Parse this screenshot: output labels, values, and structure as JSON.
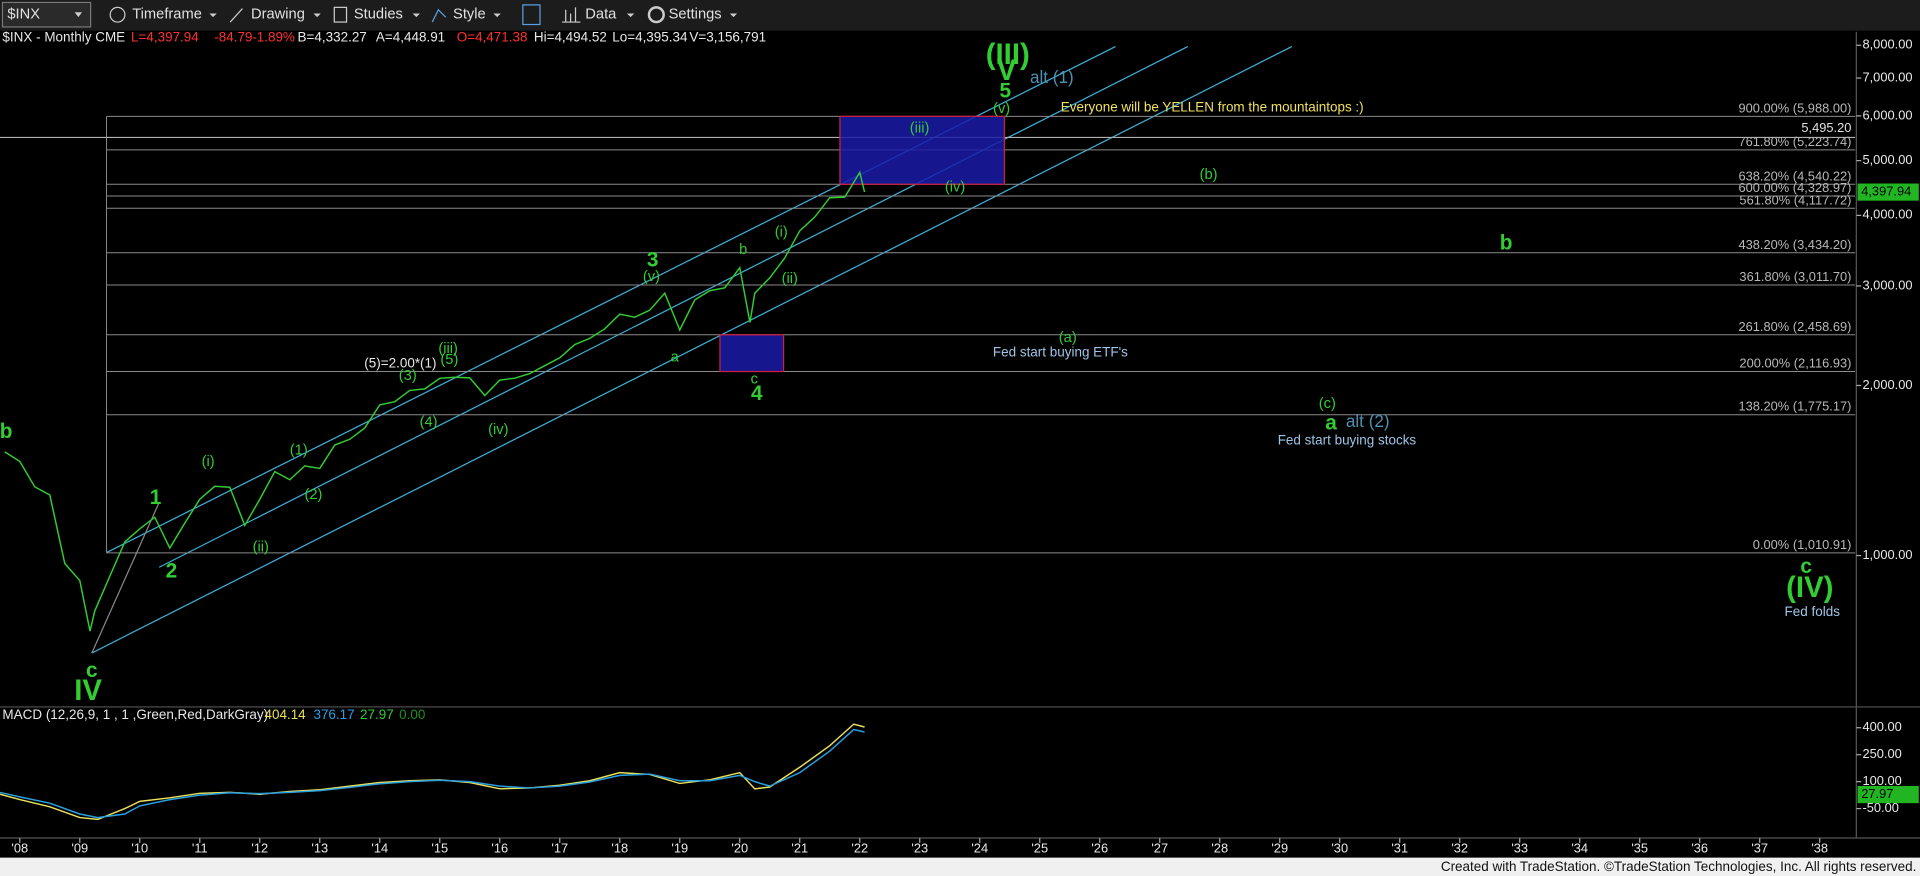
{
  "toolbar": {
    "symbol": "$INX",
    "items": [
      "Timeframe",
      "Drawing",
      "Studies",
      "Style",
      "Data",
      "Settings"
    ]
  },
  "info": [
    "$INX - Monthly CME",
    "L=4,397.94",
    "-84.79",
    "-1.89%",
    "B=4,332.27",
    "A=4,448.91",
    "O=4,471.38",
    "Hi=4,494.52",
    "Lo=4,395.34",
    "V=3,156,791"
  ],
  "footer": "Created with TradeStation. ©TradeStation Technologies, Inc. All rights reserved.",
  "chart_data": [
    {
      "type": "line",
      "log_scale": true,
      "grid": false,
      "xlim": [
        2007.67,
        2038.59
      ],
      "ylim": [
        545,
        8450
      ],
      "xticks": [
        {
          "value": 2008,
          "label": "'08"
        },
        {
          "value": 2009,
          "label": "'09"
        },
        {
          "value": 2010,
          "label": "'10"
        },
        {
          "value": 2011,
          "label": "'11"
        },
        {
          "value": 2012,
          "label": "'12"
        },
        {
          "value": 2013,
          "label": "'13"
        },
        {
          "value": 2014,
          "label": "'14"
        },
        {
          "value": 2015,
          "label": "'15"
        },
        {
          "value": 2016,
          "label": "'16"
        },
        {
          "value": 2017,
          "label": "'17"
        },
        {
          "value": 2018,
          "label": "'18"
        },
        {
          "value": 2019,
          "label": "'19"
        },
        {
          "value": 2020,
          "label": "'20"
        },
        {
          "value": 2021,
          "label": "'21"
        },
        {
          "value": 2022,
          "label": "'22"
        },
        {
          "value": 2023,
          "label": "'23"
        },
        {
          "value": 2024,
          "label": "'24"
        },
        {
          "value": 2025,
          "label": "'25"
        },
        {
          "value": 2026,
          "label": "'26"
        },
        {
          "value": 2027,
          "label": "'27"
        },
        {
          "value": 2028,
          "label": "'28"
        },
        {
          "value": 2029,
          "label": "'29"
        },
        {
          "value": 2030,
          "label": "'30"
        },
        {
          "value": 2031,
          "label": "'31"
        },
        {
          "value": 2032,
          "label": "'32"
        },
        {
          "value": 2033,
          "label": "'33"
        },
        {
          "value": 2034,
          "label": "'34"
        },
        {
          "value": 2035,
          "label": "'35"
        },
        {
          "value": 2036,
          "label": "'36"
        },
        {
          "value": 2037,
          "label": "'37"
        },
        {
          "value": 2038,
          "label": "'38"
        }
      ],
      "yticks": [
        {
          "value": 1000,
          "label": "1,000.00"
        },
        {
          "value": 2000,
          "label": "2,000.00"
        },
        {
          "value": 3000,
          "label": "3,000.00"
        },
        {
          "value": 4000,
          "label": "4,000.00"
        },
        {
          "value": 5000,
          "label": "5,000.00"
        },
        {
          "value": 6000,
          "label": "6,000.00"
        },
        {
          "value": 7000,
          "label": "7,000.00"
        },
        {
          "value": 8000,
          "label": "8,000.00"
        }
      ],
      "x": [
        2007.75,
        2008.0,
        2008.25,
        2008.5,
        2008.75,
        2009.0,
        2009.17,
        2009.25,
        2009.5,
        2009.75,
        2010.0,
        2010.25,
        2010.5,
        2010.75,
        2011.0,
        2011.25,
        2011.5,
        2011.75,
        2012.0,
        2012.25,
        2012.5,
        2012.75,
        2013.0,
        2013.25,
        2013.5,
        2013.75,
        2014.0,
        2014.25,
        2014.5,
        2014.75,
        2015.0,
        2015.25,
        2015.5,
        2015.75,
        2016.0,
        2016.25,
        2016.5,
        2016.75,
        2017.0,
        2017.25,
        2017.5,
        2017.75,
        2018.0,
        2018.25,
        2018.5,
        2018.75,
        2019.0,
        2019.25,
        2019.5,
        2019.75,
        2020.0,
        2020.17,
        2020.25,
        2020.5,
        2020.75,
        2021.0,
        2021.25,
        2021.5,
        2021.75,
        2022.0,
        2022.08
      ],
      "series": [
        {
          "color": "#33cc33",
          "values": [
            1526,
            1468,
            1323,
            1280,
            968,
            903,
            735,
            798,
            919,
            1057,
            1115,
            1169,
            1031,
            1141,
            1258,
            1326,
            1321,
            1131,
            1258,
            1408,
            1362,
            1441,
            1426,
            1569,
            1606,
            1682,
            1848,
            1872,
            1960,
            1972,
            2059,
            2068,
            2063,
            1920,
            2044,
            2060,
            2099,
            2168,
            2239,
            2363,
            2423,
            2519,
            2674,
            2641,
            2718,
            2914,
            2507,
            2834,
            2942,
            2977,
            3231,
            2585,
            2912,
            3100,
            3363,
            3756,
            3973,
            4298,
            4308,
            4766,
            4397.94
          ]
        }
      ],
      "last_price": 4397.94,
      "last_price_label": "4,397.94",
      "reference_line": {
        "value": 5495.2,
        "label": "5,495.20"
      },
      "levels": [
        {
          "value": 5988,
          "label": "900.00% (5,988.00)"
        },
        {
          "value": 5223.74,
          "label": "761.80% (5,223.74)"
        },
        {
          "value": 4540.22,
          "label": "638.20% (4,540.22)"
        },
        {
          "value": 4328.97,
          "label": "600.00% (4,328.97)"
        },
        {
          "value": 4117.72,
          "label": "561.80% (4,117.72)"
        },
        {
          "value": 3434.2,
          "label": "438.20% (3,434.20)"
        },
        {
          "value": 3011.7,
          "label": "361.80% (3,011.70)"
        },
        {
          "value": 2458.69,
          "label": "261.80% (2,458.69)"
        },
        {
          "value": 2116.93,
          "label": "200.00% (2,116.93)"
        },
        {
          "value": 1775.17,
          "label": "138.20% (1,775.17)"
        },
        {
          "value": 1010.91,
          "label": "0.00% (1,010.91)"
        }
      ],
      "boxes": [
        {
          "x": [
            2021.67,
            2024.41
          ],
          "y": [
            4540.22,
            5988
          ]
        },
        {
          "x": [
            2019.67,
            2020.73
          ],
          "y": [
            2116.93,
            2458.69
          ]
        }
      ],
      "annotations": [
        "b",
        "c",
        "IV",
        "1",
        "2",
        "(i)",
        "(ii)",
        "(1)",
        "(2)",
        "(3)",
        "(4)",
        "(5)",
        "(5)=2.00*(1)",
        "(iii)",
        "(iv)",
        "3",
        "(v)",
        "a",
        "b",
        "c",
        "4",
        "(i)",
        "(ii)",
        "(iii)",
        "(iv)",
        "(III)",
        "V",
        "5",
        "(v)",
        "alt (1)",
        "Everyone will be YELLEN from the mountaintops :)",
        "(b)",
        "b",
        "(a)",
        "Fed start buying ETF's",
        "(c)",
        "a",
        "alt (2)",
        "Fed start buying stocks",
        "c",
        "(IV)",
        "Fed folds"
      ]
    },
    {
      "type": "line",
      "title": "MACD (12,26,9, 1 , 1 ,Green,Red,DarkGray)",
      "readouts": [
        "404.14",
        "376.17",
        "27.97",
        "0.00"
      ],
      "xlim": [
        2007.67,
        2038.59
      ],
      "ylim": [
        -207,
        509
      ],
      "yticks": [
        {
          "value": 400,
          "label": "400.00"
        },
        {
          "value": 250,
          "label": "250.00"
        },
        {
          "value": 100,
          "label": "100.00"
        },
        {
          "value": -50,
          "label": "-50.00"
        }
      ],
      "tag": {
        "value": 27.97,
        "label": "27.97"
      },
      "x": [
        2007.67,
        2008,
        2008.5,
        2009,
        2009.3,
        2009.75,
        2010,
        2010.5,
        2011,
        2011.5,
        2012,
        2012.5,
        2013,
        2013.5,
        2014,
        2014.5,
        2015,
        2015.5,
        2016,
        2016.5,
        2017,
        2017.5,
        2018,
        2018.5,
        2019,
        2019.5,
        2020,
        2020.25,
        2020.5,
        2021,
        2021.5,
        2021.9,
        2022.08
      ],
      "series": [
        {
          "color": "#e8e05a",
          "values": [
            30,
            0,
            -40,
            -100,
            -110,
            -50,
            -10,
            10,
            35,
            40,
            30,
            45,
            55,
            75,
            95,
            105,
            110,
            95,
            60,
            65,
            80,
            105,
            150,
            140,
            90,
            110,
            150,
            60,
            70,
            180,
            300,
            420,
            404.14
          ]
        },
        {
          "color": "#2aa0e0",
          "values": [
            40,
            15,
            -20,
            -80,
            -100,
            -80,
            -35,
            0,
            25,
            38,
            33,
            40,
            50,
            68,
            88,
            100,
            108,
            100,
            75,
            65,
            75,
            98,
            135,
            142,
            105,
            105,
            135,
            100,
            75,
            150,
            270,
            390,
            376.17
          ]
        }
      ]
    }
  ]
}
